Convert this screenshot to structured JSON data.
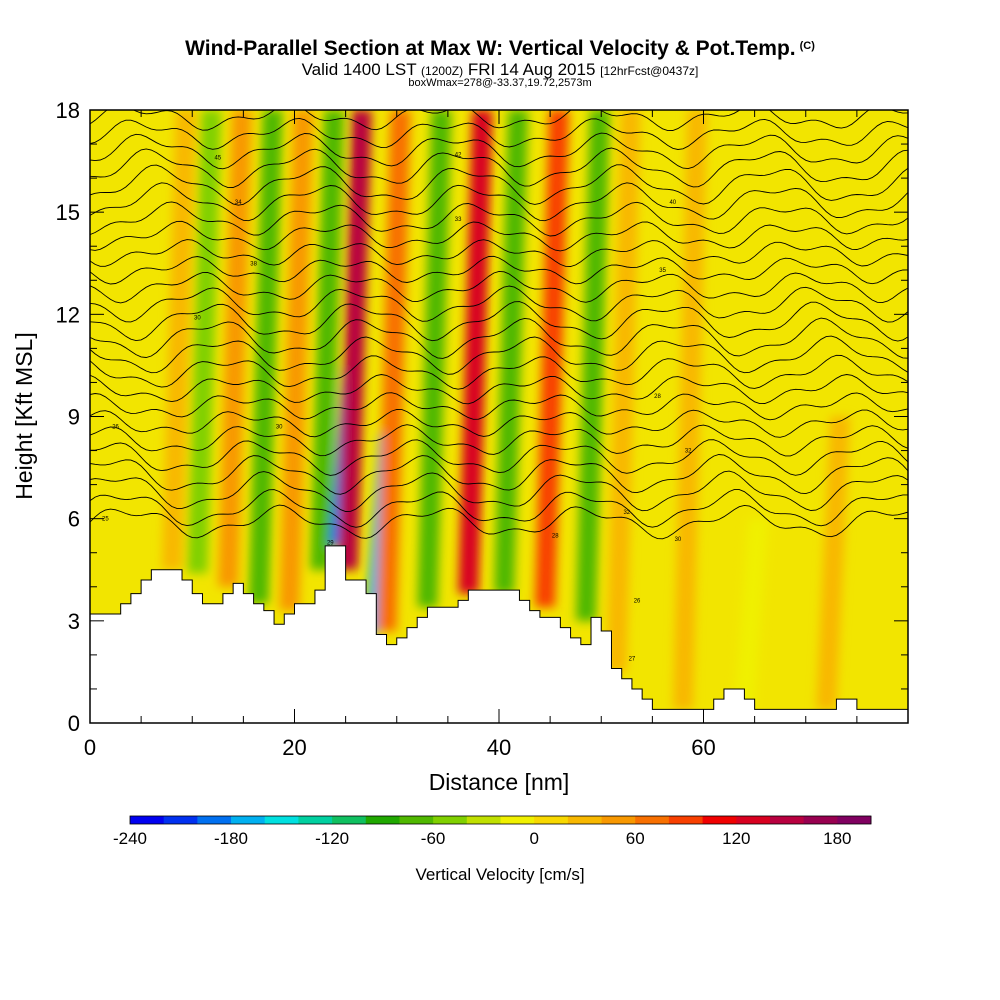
{
  "header": {
    "title": "Wind-Parallel Section at Max W: Vertical Velocity & Pot.Temp.",
    "copyright": "(C)",
    "valid_prefix": "Valid",
    "valid_main": "1400 LST",
    "valid_utc": "(1200Z)",
    "valid_date": "FRI 14 Aug 2015",
    "forecast": "[12hrFcst@0437z]",
    "box_info": "boxWmax=278@-33.37,19.72,2573m"
  },
  "colors": {
    "background_fill": "#f2e500",
    "terrain": "#ffffff",
    "contour": "#000000"
  },
  "chart_data": {
    "type": "heatmap",
    "title": "Wind-Parallel Section at Max W: Vertical Velocity & Pot.Temp.",
    "xlabel": "Distance [nm]",
    "ylabel": "Height [Kft MSL]",
    "xlim": [
      0,
      80
    ],
    "ylim": [
      0,
      18
    ],
    "x_ticks": [
      0,
      20,
      40,
      60
    ],
    "y_ticks": [
      0,
      3,
      6,
      9,
      12,
      15,
      18
    ],
    "colorbar": {
      "label": "Vertical Velocity [cm/s]",
      "min": -240,
      "max": 200,
      "step": 20,
      "tick_values": [
        -240,
        -180,
        -120,
        -60,
        0,
        60,
        120,
        180
      ],
      "colors": [
        "#0000f0",
        "#0030f0",
        "#0070f0",
        "#00b0f0",
        "#00e0e0",
        "#00d0a0",
        "#10c060",
        "#20a800",
        "#50b800",
        "#80d000",
        "#c0e000",
        "#f0f000",
        "#f8d800",
        "#f8b800",
        "#f89800",
        "#f87000",
        "#f84000",
        "#f00000",
        "#d80020",
        "#b80040",
        "#980050",
        "#800060"
      ]
    },
    "vertical_velocity_columns": [
      {
        "x": 8.0,
        "z0": 4.5,
        "z1": 18,
        "w": 30
      },
      {
        "x": 10.5,
        "z0": 4.4,
        "z1": 18,
        "w": -45
      },
      {
        "x": 13.5,
        "z0": 4.0,
        "z1": 18,
        "w": 45
      },
      {
        "x": 16.5,
        "z0": 3.5,
        "z1": 18,
        "w": -70
      },
      {
        "x": 19.5,
        "z0": 3.3,
        "z1": 18,
        "w": 40
      },
      {
        "x": 22.5,
        "z0": 4.5,
        "z1": 18,
        "w": -70
      },
      {
        "x": 24.0,
        "z0": 5.2,
        "z1": 10.5,
        "w": -200
      },
      {
        "x": 25.2,
        "z0": 4.5,
        "z1": 18,
        "w": 150
      },
      {
        "x": 27.5,
        "z0": 2.6,
        "z1": 8.5,
        "w": -180
      },
      {
        "x": 29.0,
        "z0": 2.7,
        "z1": 18,
        "w": 70
      },
      {
        "x": 33.0,
        "z0": 3.4,
        "z1": 18,
        "w": -75
      },
      {
        "x": 37.0,
        "z0": 3.8,
        "z1": 18,
        "w": 120
      },
      {
        "x": 40.5,
        "z0": 3.8,
        "z1": 18,
        "w": -80
      },
      {
        "x": 44.5,
        "z0": 3.4,
        "z1": 18,
        "w": 90
      },
      {
        "x": 48.5,
        "z0": 3.0,
        "z1": 18,
        "w": -75
      },
      {
        "x": 51.5,
        "z0": 1.5,
        "z1": 18,
        "w": 35
      },
      {
        "x": 58.0,
        "z0": 0.4,
        "z1": 18,
        "w": 25
      },
      {
        "x": 64.0,
        "z0": 0.4,
        "z1": 6,
        "w": -15
      },
      {
        "x": 72.0,
        "z0": 0.4,
        "z1": 9,
        "w": 20
      }
    ],
    "terrain_height_kft": {
      "x": [
        0,
        2,
        3,
        4,
        5,
        6,
        7,
        8,
        9,
        10,
        11,
        12,
        13,
        14,
        15,
        16,
        17,
        18,
        19,
        20,
        21,
        22,
        23,
        24,
        25,
        26,
        27,
        28,
        29,
        30,
        31,
        32,
        33,
        34,
        35,
        36,
        37,
        38,
        39,
        40,
        41,
        42,
        43,
        44,
        45,
        46,
        47,
        48,
        49,
        50,
        51,
        52,
        53,
        54,
        55,
        56,
        57,
        58,
        59,
        60,
        61,
        62,
        63,
        64,
        65,
        66,
        67,
        68,
        69,
        70,
        71,
        72,
        73,
        74,
        75,
        76,
        77,
        78,
        79,
        80
      ],
      "z": [
        3.2,
        3.2,
        3.5,
        3.8,
        4.2,
        4.5,
        4.5,
        4.5,
        4.2,
        3.8,
        3.5,
        3.5,
        3.8,
        4.1,
        3.8,
        3.5,
        3.3,
        2.9,
        3.2,
        3.5,
        3.5,
        3.9,
        5.2,
        5.2,
        4.2,
        4.2,
        3.8,
        2.6,
        2.3,
        2.5,
        2.8,
        3.1,
        3.4,
        3.4,
        3.4,
        3.6,
        3.9,
        3.9,
        3.9,
        3.9,
        3.9,
        3.6,
        3.3,
        3.1,
        3.1,
        2.8,
        2.5,
        2.3,
        3.1,
        2.7,
        1.6,
        1.3,
        1.0,
        0.7,
        0.4,
        0.4,
        0.4,
        0.4,
        0.4,
        0.4,
        0.7,
        1.0,
        1.0,
        0.7,
        0.4,
        0.4,
        0.4,
        0.4,
        0.4,
        0.4,
        0.4,
        0.4,
        0.7,
        0.7,
        0.4,
        0.4,
        0.4,
        0.4,
        0.4,
        0.7
      ]
    },
    "isentrope_base_heights_kft": [
      5.9,
      6.3,
      6.8,
      7.3,
      7.8,
      8.3,
      8.8,
      9.3,
      9.8,
      10.3,
      10.8,
      11.3,
      11.8,
      12.3,
      12.8,
      13.3,
      13.8,
      14.3,
      14.8,
      15.3,
      15.8,
      16.3,
      16.8,
      17.3,
      17.8
    ],
    "contour_labels": [
      {
        "text": "25",
        "x": 1.5,
        "z": 6.0
      },
      {
        "text": "26",
        "x": 2.5,
        "z": 8.7
      },
      {
        "text": "30",
        "x": 10.5,
        "z": 11.9
      },
      {
        "text": "34",
        "x": 14.5,
        "z": 15.3
      },
      {
        "text": "30",
        "x": 18.5,
        "z": 8.7
      },
      {
        "text": "45",
        "x": 12.5,
        "z": 16.6
      },
      {
        "text": "38",
        "x": 16.0,
        "z": 13.5
      },
      {
        "text": "29",
        "x": 23.5,
        "z": 5.3
      },
      {
        "text": "33",
        "x": 36.0,
        "z": 14.8
      },
      {
        "text": "42",
        "x": 36.0,
        "z": 16.7
      },
      {
        "text": "28",
        "x": 45.5,
        "z": 5.5
      },
      {
        "text": "32",
        "x": 52.5,
        "z": 6.2
      },
      {
        "text": "35",
        "x": 56.0,
        "z": 13.3
      },
      {
        "text": "40",
        "x": 57.0,
        "z": 15.3
      },
      {
        "text": "26",
        "x": 53.5,
        "z": 3.6
      },
      {
        "text": "28",
        "x": 55.5,
        "z": 9.6
      },
      {
        "text": "30",
        "x": 57.5,
        "z": 5.4
      },
      {
        "text": "32",
        "x": 58.5,
        "z": 8.0
      },
      {
        "text": "27",
        "x": 53.0,
        "z": 1.9
      }
    ]
  }
}
